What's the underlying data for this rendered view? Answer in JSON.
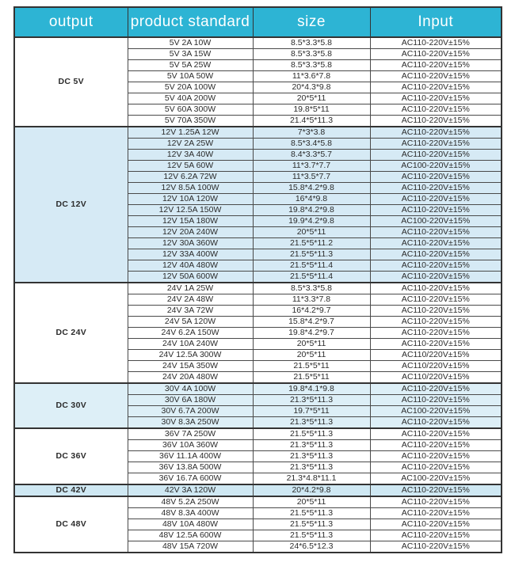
{
  "header": {
    "columns": [
      "output",
      "product standard",
      "size",
      "Input"
    ]
  },
  "colors": {
    "header_bg": "#2db4d4",
    "header_text": "#ffffff",
    "tint_blue": "#d6eaf5",
    "tint_blue_light": "#ddeff7",
    "tint_blue_strong": "#cfe8f3",
    "row_white": "#ffffff"
  },
  "table": {
    "groups": [
      {
        "output": "DC 5V",
        "tint": "#ffffff",
        "rows": [
          {
            "product": "5V 2A 10W",
            "size": "8.5*3.3*5.8",
            "input": "AC110-220V±15%"
          },
          {
            "product": "5V 3A 15W",
            "size": "8.5*3.3*5.8",
            "input": "AC110-220V±15%"
          },
          {
            "product": "5V 5A 25W",
            "size": "8.5*3.3*5.8",
            "input": "AC110-220V±15%"
          },
          {
            "product": "5V 10A 50W",
            "size": "11*3.6*7.8",
            "input": "AC110-220V±15%"
          },
          {
            "product": "5V 20A 100W",
            "size": "20*4.3*9.8",
            "input": "AC110-220V±15%"
          },
          {
            "product": "5V 40A 200W",
            "size": "20*5*11",
            "input": "AC110-220V±15%"
          },
          {
            "product": "5V 60A 300W",
            "size": "19.8*5*11",
            "input": "AC110-220V±15%"
          },
          {
            "product": "5V 70A 350W",
            "size": "21.4*5*11.3",
            "input": "AC110-220V±15%"
          }
        ]
      },
      {
        "output": "DC 12V",
        "tint": "#d6eaf5",
        "rows": [
          {
            "product": "12V 1.25A 12W",
            "size": "7*3*3.8",
            "input": "AC110-220V±15%"
          },
          {
            "product": "12V 2A 25W",
            "size": "8.5*3.4*5.8",
            "input": "AC110-220V±15%"
          },
          {
            "product": "12V 3A 40W",
            "size": "8.4*3.3*5.7",
            "input": "AC110-220V±15%"
          },
          {
            "product": "12V 5A 60W",
            "size": "11*3.7*7.7",
            "input": "AC100-220V±15%"
          },
          {
            "product": "12V 6.2A 72W",
            "size": "11*3.5*7.7",
            "input": "AC110-220V±15%"
          },
          {
            "product": "12V 8.5A 100W",
            "size": "15.8*4.2*9.8",
            "input": "AC110-220V±15%"
          },
          {
            "product": "12V 10A 120W",
            "size": "16*4*9.8",
            "input": "AC110-220V±15%"
          },
          {
            "product": "12V 12.5A 150W",
            "size": "19.8*4.2*9.8",
            "input": "AC110-220V±15%"
          },
          {
            "product": "12V 15A 180W",
            "size": "19.9*4.2*9.8",
            "input": "AC100-220V±15%"
          },
          {
            "product": "12V 20A 240W",
            "size": "20*5*11",
            "input": "AC110-220V±15%"
          },
          {
            "product": "12V 30A 360W",
            "size": "21.5*5*11.2",
            "input": "AC110-220V±15%"
          },
          {
            "product": "12V 33A 400W",
            "size": "21.5*5*11.3",
            "input": "AC110-220V±15%"
          },
          {
            "product": "12V 40A 480W",
            "size": "21.5*5*11.4",
            "input": "AC110-220V±15%"
          },
          {
            "product": "12V 50A 600W",
            "size": "21.5*5*11.4",
            "input": "AC110-220V±15%"
          }
        ]
      },
      {
        "output": "DC 24V",
        "tint": "#ffffff",
        "rows": [
          {
            "product": "24V 1A 25W",
            "size": "8.5*3.3*5.8",
            "input": "AC110-220V±15%"
          },
          {
            "product": "24V 2A 48W",
            "size": "11*3.3*7.8",
            "input": "AC110-220V±15%"
          },
          {
            "product": "24V 3A 72W",
            "size": "16*4.2*9.7",
            "input": "AC110-220V±15%"
          },
          {
            "product": "24V 5A 120W",
            "size": "15.8*4.2*9.7",
            "input": "AC110-220V±15%"
          },
          {
            "product": "24V 6.2A 150W",
            "size": "19.8*4.2*9.7",
            "input": "AC110-220V±15%"
          },
          {
            "product": "24V 10A 240W",
            "size": "20*5*11",
            "input": "AC110-220V±15%"
          },
          {
            "product": "24V 12.5A 300W",
            "size": "20*5*11",
            "input": "AC110/220V±15%"
          },
          {
            "product": "24V 15A 350W",
            "size": "21.5*5*11",
            "input": "AC110/220V±15%"
          },
          {
            "product": "24V 20A 480W",
            "size": "21.5*5*11",
            "input": "AC110/220V±15%"
          }
        ]
      },
      {
        "output": "DC 30V",
        "tint": "#ddeff7",
        "rows": [
          {
            "product": "30V 4A 100W",
            "size": "19.8*4.1*9.8",
            "input": "AC110-220V±15%"
          },
          {
            "product": "30V 6A 180W",
            "size": "21.3*5*11.3",
            "input": "AC110-220V±15%"
          },
          {
            "product": "30V 6.7A 200W",
            "size": "19.7*5*11",
            "input": "AC100-220V±15%"
          },
          {
            "product": "30V 8.3A 250W",
            "size": "21.3*5*11.3",
            "input": "AC110-220V±15%"
          }
        ]
      },
      {
        "output": "DC 36V",
        "tint": "#ffffff",
        "rows": [
          {
            "product": "36V 7A 250W",
            "size": "21.5*5*11.3",
            "input": "AC110-220V±15%"
          },
          {
            "product": "36V 10A 360W",
            "size": "21.3*5*11.3",
            "input": "AC110-220V±15%"
          },
          {
            "product": "36V 11.1A 400W",
            "size": "21.3*5*11.3",
            "input": "AC110-220V±15%"
          },
          {
            "product": "36V 13.8A 500W",
            "size": "21.3*5*11.3",
            "input": "AC110-220V±15%"
          },
          {
            "product": "36V 16.7A 600W",
            "size": "21.3*4.8*11.1",
            "input": "AC100-220V±15%"
          }
        ]
      },
      {
        "output": "DC 42V",
        "tint": "#cfe8f3",
        "rows": [
          {
            "product": "42V 3A 120W",
            "size": "20*4.2*9.8",
            "input": "AC110-220V±15%"
          }
        ]
      },
      {
        "output": "DC 48V",
        "tint": "#ffffff",
        "rows": [
          {
            "product": "48V 5.2A 250W",
            "size": "20*5*11",
            "input": "AC110-220V±15%"
          },
          {
            "product": "48V 8.3A 400W",
            "size": "21.5*5*11.3",
            "input": "AC110-220V±15%"
          },
          {
            "product": "48V 10A 480W",
            "size": "21.5*5*11.3",
            "input": "AC110-220V±15%"
          },
          {
            "product": "48V 12.5A 600W",
            "size": "21.5*5*11.3",
            "input": "AC110-220V±15%"
          },
          {
            "product": "48V 15A 720W",
            "size": "24*6.5*12.3",
            "input": "AC110-220V±15%"
          }
        ]
      }
    ]
  }
}
